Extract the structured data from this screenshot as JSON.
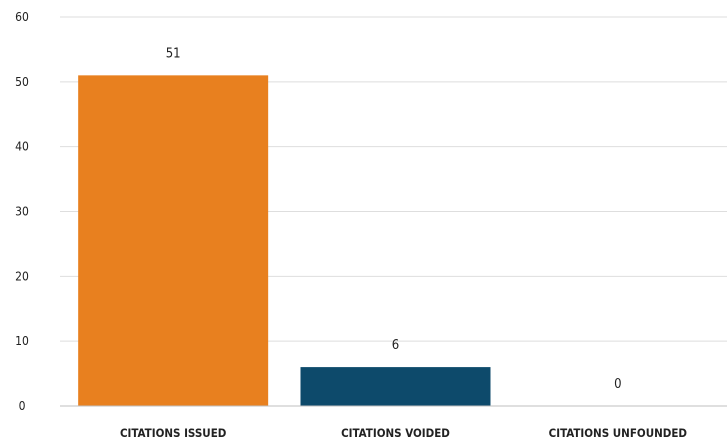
{
  "chart_data": {
    "type": "bar",
    "categories": [
      "CITATIONS ISSUED",
      "CITATIONS VOIDED",
      "CITATIONS UNFOUNDED"
    ],
    "values": [
      51,
      6,
      0
    ],
    "data_labels": [
      "51",
      "6",
      "0"
    ],
    "colors": [
      "#e8801f",
      "#0d4a6b",
      "#0d4a6b"
    ],
    "title": "",
    "xlabel": "",
    "ylabel": "",
    "ylim": [
      0,
      60
    ],
    "yticks": [
      0,
      10,
      20,
      30,
      40,
      50,
      60
    ],
    "grid": true,
    "legend": "none"
  }
}
